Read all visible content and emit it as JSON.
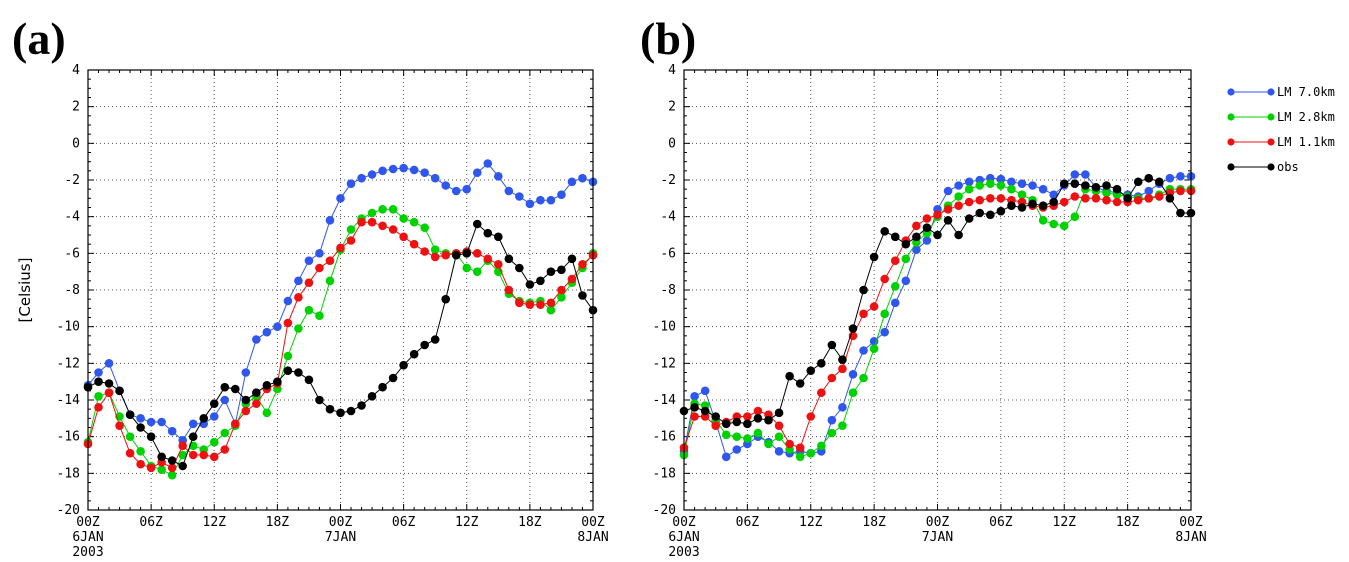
{
  "chart_data": [
    {
      "type": "line",
      "panel_label": "(a)",
      "ylabel": "[Celsius]",
      "ylim": [
        -20,
        4
      ],
      "yticks": [
        -20,
        -18,
        -16,
        -14,
        -12,
        -10,
        -8,
        -6,
        -4,
        -2,
        0,
        2,
        4
      ],
      "xlim": [
        0,
        48
      ],
      "xticks": [
        {
          "x": 0,
          "label": "00Z",
          "sub": [
            "6JAN",
            "2003"
          ]
        },
        {
          "x": 6,
          "label": "06Z",
          "sub": []
        },
        {
          "x": 12,
          "label": "12Z",
          "sub": []
        },
        {
          "x": 18,
          "label": "18Z",
          "sub": []
        },
        {
          "x": 24,
          "label": "00Z",
          "sub": [
            "7JAN"
          ]
        },
        {
          "x": 30,
          "label": "06Z",
          "sub": []
        },
        {
          "x": 36,
          "label": "12Z",
          "sub": []
        },
        {
          "x": 42,
          "label": "18Z",
          "sub": []
        },
        {
          "x": 48,
          "label": "00Z",
          "sub": [
            "8JAN"
          ]
        }
      ],
      "grid": "dotted",
      "series": [
        {
          "name": "LM 7.0km",
          "color": "#2f57ee",
          "values": [
            -13.2,
            -12.5,
            -12.0,
            -13.5,
            -14.8,
            -15.0,
            -15.2,
            -15.2,
            -15.7,
            -16.2,
            -15.3,
            -15.3,
            -14.9,
            -14.0,
            -15.3,
            -12.5,
            -10.7,
            -10.3,
            -10.0,
            -8.6,
            -7.5,
            -6.4,
            -6.0,
            -4.2,
            -3.0,
            -2.2,
            -1.9,
            -1.7,
            -1.5,
            -1.4,
            -1.35,
            -1.45,
            -1.6,
            -1.9,
            -2.3,
            -2.6,
            -2.5,
            -1.6,
            -1.1,
            -1.8,
            -2.6,
            -2.9,
            -3.3,
            -3.1,
            -3.1,
            -2.8,
            -2.1,
            -1.9,
            -2.1
          ]
        },
        {
          "name": "LM 2.8km",
          "color": "#00d200",
          "values": [
            -16.3,
            -13.8,
            -13.6,
            -14.9,
            -16.0,
            -16.8,
            -17.6,
            -17.8,
            -18.1,
            -17.0,
            -16.5,
            -16.7,
            -16.3,
            -15.8,
            -15.4,
            -14.2,
            -13.8,
            -14.7,
            -13.4,
            -11.6,
            -10.1,
            -9.1,
            -9.4,
            -7.5,
            -5.8,
            -4.7,
            -4.1,
            -3.8,
            -3.6,
            -3.6,
            -4.1,
            -4.3,
            -4.6,
            -5.8,
            -6.0,
            -6.0,
            -6.8,
            -7.0,
            -6.4,
            -7.0,
            -8.2,
            -8.6,
            -8.7,
            -8.6,
            -9.1,
            -8.4,
            -7.6,
            -6.8,
            -6.0
          ]
        },
        {
          "name": "LM 1.1km",
          "color": "#ee1111",
          "values": [
            -16.4,
            -14.4,
            -13.6,
            -15.4,
            -16.9,
            -17.5,
            -17.7,
            -17.4,
            -17.7,
            -16.5,
            -17.0,
            -17.0,
            -17.1,
            -16.7,
            -15.3,
            -14.6,
            -14.2,
            -13.4,
            -13.1,
            -9.8,
            -8.4,
            -7.6,
            -6.8,
            -6.4,
            -5.7,
            -5.3,
            -4.3,
            -4.3,
            -4.5,
            -4.7,
            -5.1,
            -5.5,
            -5.9,
            -6.2,
            -6.1,
            -6.0,
            -5.9,
            -6.0,
            -6.3,
            -6.6,
            -8.0,
            -8.7,
            -8.8,
            -8.8,
            -8.7,
            -8.0,
            -7.4,
            -6.6,
            -6.1
          ]
        },
        {
          "name": "obs",
          "color": "#000000",
          "values": [
            -13.3,
            -13.0,
            -13.1,
            -13.5,
            -14.8,
            -15.5,
            -16.0,
            -17.1,
            -17.3,
            -17.6,
            -16.0,
            -15.0,
            -14.2,
            -13.3,
            -13.4,
            -14.0,
            -13.6,
            -13.2,
            -13.0,
            -12.4,
            -12.5,
            -12.9,
            -14.0,
            -14.5,
            -14.7,
            -14.6,
            -14.3,
            -13.8,
            -13.3,
            -12.8,
            -12.1,
            -11.5,
            -11.0,
            -10.7,
            -8.5,
            -6.1,
            -6.0,
            -4.4,
            -4.9,
            -5.1,
            -6.3,
            -6.8,
            -7.7,
            -7.5,
            -7.0,
            -6.9,
            -6.3,
            -8.3,
            -9.1
          ]
        }
      ]
    },
    {
      "type": "line",
      "panel_label": "(b)",
      "ylabel": "",
      "ylim": [
        -20,
        4
      ],
      "yticks": [
        -20,
        -18,
        -16,
        -14,
        -12,
        -10,
        -8,
        -6,
        -4,
        -2,
        0,
        2,
        4
      ],
      "xlim": [
        0,
        48
      ],
      "xticks": [
        {
          "x": 0,
          "label": "00Z",
          "sub": [
            "6JAN",
            "2003"
          ]
        },
        {
          "x": 6,
          "label": "06Z",
          "sub": []
        },
        {
          "x": 12,
          "label": "12Z",
          "sub": []
        },
        {
          "x": 18,
          "label": "18Z",
          "sub": []
        },
        {
          "x": 24,
          "label": "00Z",
          "sub": [
            "7JAN"
          ]
        },
        {
          "x": 30,
          "label": "06Z",
          "sub": []
        },
        {
          "x": 36,
          "label": "12Z",
          "sub": []
        },
        {
          "x": 42,
          "label": "18Z",
          "sub": []
        },
        {
          "x": 48,
          "label": "00Z",
          "sub": [
            "8JAN"
          ]
        }
      ],
      "grid": "dotted",
      "legend_position": "right",
      "series": [
        {
          "name": "LM 7.0km",
          "color": "#2f57ee",
          "values": [
            -16.8,
            -13.8,
            -13.5,
            -15.2,
            -17.1,
            -16.7,
            -16.4,
            -16.0,
            -16.3,
            -16.8,
            -16.9,
            -16.8,
            -16.9,
            -16.8,
            -15.1,
            -14.4,
            -12.6,
            -11.3,
            -10.8,
            -10.3,
            -8.7,
            -7.5,
            -5.8,
            -5.3,
            -3.6,
            -2.6,
            -2.3,
            -2.1,
            -2.0,
            -1.9,
            -1.95,
            -2.1,
            -2.2,
            -2.3,
            -2.5,
            -2.8,
            -2.3,
            -1.7,
            -1.7,
            -2.4,
            -2.6,
            -2.7,
            -2.8,
            -2.9,
            -2.6,
            -2.2,
            -1.9,
            -1.8,
            -1.8
          ]
        },
        {
          "name": "LM 2.8km",
          "color": "#00d200",
          "values": [
            -17.0,
            -14.2,
            -14.3,
            -15.1,
            -15.9,
            -16.0,
            -16.1,
            -15.8,
            -16.4,
            -16.0,
            -16.7,
            -17.1,
            -16.9,
            -16.5,
            -15.8,
            -15.4,
            -13.6,
            -12.8,
            -11.2,
            -9.3,
            -7.8,
            -6.3,
            -5.4,
            -4.9,
            -4.0,
            -3.4,
            -2.9,
            -2.5,
            -2.3,
            -2.2,
            -2.3,
            -2.5,
            -2.8,
            -3.1,
            -4.2,
            -4.4,
            -4.5,
            -4.0,
            -2.5,
            -2.6,
            -2.7,
            -2.8,
            -2.9,
            -3.0,
            -3.0,
            -2.8,
            -2.5,
            -2.5,
            -2.5
          ]
        },
        {
          "name": "LM 1.1km",
          "color": "#ee1111",
          "values": [
            -16.6,
            -14.9,
            -14.9,
            -15.4,
            -15.2,
            -14.9,
            -14.9,
            -14.6,
            -14.8,
            -15.4,
            -16.4,
            -16.6,
            -14.9,
            -13.6,
            -12.8,
            -12.3,
            -10.5,
            -9.3,
            -8.9,
            -7.4,
            -6.4,
            -5.3,
            -4.5,
            -4.1,
            -3.9,
            -3.6,
            -3.4,
            -3.2,
            -3.1,
            -3.0,
            -3.0,
            -3.1,
            -3.2,
            -3.4,
            -3.5,
            -3.4,
            -3.2,
            -2.9,
            -3.0,
            -3.0,
            -3.1,
            -3.2,
            -3.2,
            -3.1,
            -3.0,
            -2.9,
            -2.7,
            -2.6,
            -2.6
          ]
        },
        {
          "name": "obs",
          "color": "#000000",
          "values": [
            -14.6,
            -14.4,
            -14.6,
            -14.9,
            -15.3,
            -15.2,
            -15.3,
            -15.0,
            -15.1,
            -14.7,
            -12.7,
            -13.1,
            -12.4,
            -12.0,
            -11.0,
            -11.8,
            -10.1,
            -8.0,
            -6.2,
            -4.8,
            -5.1,
            -5.5,
            -5.1,
            -4.6,
            -5.0,
            -4.2,
            -5.0,
            -4.1,
            -3.8,
            -3.9,
            -3.7,
            -3.4,
            -3.5,
            -3.3,
            -3.4,
            -3.2,
            -2.2,
            -2.2,
            -2.3,
            -2.4,
            -2.3,
            -2.5,
            -3.0,
            -2.1,
            -1.9,
            -2.1,
            -3.0,
            -3.8,
            -3.8
          ]
        }
      ]
    }
  ]
}
